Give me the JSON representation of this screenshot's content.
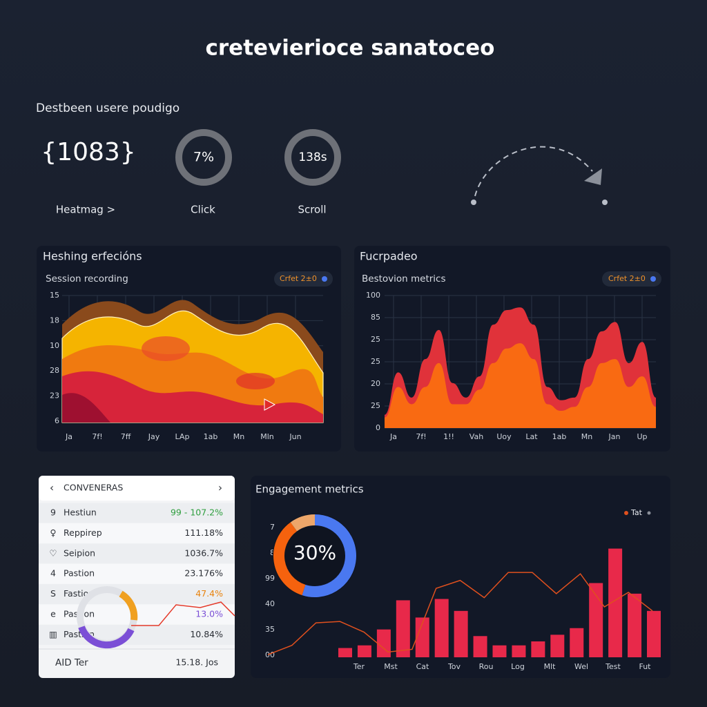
{
  "header": {
    "title": "cretevierioce sanatoceo"
  },
  "summary": {
    "heading": "Destbeen usere poudigo",
    "metrics": [
      {
        "value": "{1083}",
        "label": "Heatmag >"
      },
      {
        "value": "7%",
        "label": "Click"
      },
      {
        "value": "138s",
        "label": "Scroll"
      }
    ]
  },
  "heatmap_panel": {
    "title": "Heshing erfecións",
    "subtitle": "Session recording",
    "badge": "Crfet 2±0",
    "y_labels": [
      "15",
      "18",
      "10",
      "28",
      "23",
      "6"
    ],
    "x_labels": [
      "Ja",
      "7f!",
      "7ff",
      "Jay",
      "LAp",
      "1ab",
      "Mn",
      "Mln",
      "Jun"
    ]
  },
  "area_panel": {
    "title": "Fucrpadeo",
    "subtitle": "Bestovion metrics",
    "badge": "Crfet 2±0",
    "chart": {
      "type": "area",
      "ylim": [
        0,
        100
      ],
      "y_labels": [
        "100",
        "85",
        "25",
        "25",
        "20",
        "25",
        "0"
      ],
      "x_labels": [
        "Ja",
        "7f!",
        "1!!",
        "Vah",
        "Uoy",
        "Lat",
        "1ab",
        "Mn",
        "Jan",
        "Up"
      ],
      "series": [
        {
          "color": "#e0323a",
          "values": [
            10,
            42,
            23,
            52,
            74,
            34,
            23,
            39,
            78,
            89,
            91,
            78,
            31,
            21,
            23,
            52,
            73,
            80,
            49,
            65,
            23
          ]
        },
        {
          "color": "#f96a12",
          "values": [
            8,
            31,
            18,
            31,
            49,
            18,
            18,
            29,
            49,
            60,
            64,
            52,
            18,
            13,
            16,
            31,
            49,
            52,
            31,
            39,
            16
          ]
        }
      ]
    }
  },
  "table_card": {
    "title": "CONVENERAS",
    "rows": [
      {
        "icon": "9",
        "name": "Hestiun",
        "value": "99 - 107.2%",
        "color": "#2e9e3e"
      },
      {
        "icon": "♀",
        "name": "Reppirep",
        "value": "111.18%",
        "color": "#2b2f36"
      },
      {
        "icon": "♡",
        "name": "Seipion",
        "value": "1036.7%",
        "color": "#2b2f36"
      },
      {
        "icon": "4",
        "name": "Pastion",
        "value": "23.176%",
        "color": "#2b2f36"
      },
      {
        "icon": "S",
        "name": "Fastion",
        "value": "47.4%",
        "color": "#e8820c"
      },
      {
        "icon": "e",
        "name": "Pastion",
        "value": "13.0%",
        "color": "#7b4fd6"
      },
      {
        "icon": "▥",
        "name": "Pastion",
        "value": "10.84%",
        "color": "#2b2f36"
      }
    ],
    "footer": {
      "left": "AID Ter",
      "right": "15.18. Jos"
    }
  },
  "engagement_panel": {
    "title": "Engagement metrics",
    "legend": "Tat",
    "donut": {
      "label": "30%",
      "values": [
        55,
        35,
        10
      ],
      "colors": [
        "#4a78f0",
        "#f5620e",
        "#eda66a"
      ]
    },
    "chart": {
      "type": "bar",
      "ylim": [
        0,
        100
      ],
      "y_labels": [
        "7",
        "8",
        "99",
        "40",
        "35",
        "00"
      ],
      "x_labels": [
        "Ter",
        "Mst",
        "Cat",
        "Tov",
        "Rou",
        "Log",
        "Mlt",
        "Wel",
        "Test",
        "Fut"
      ],
      "bar_color": "#e8294a",
      "line_color": "#e0501e",
      "values": [
        7,
        9,
        21,
        43,
        30,
        44,
        35,
        16,
        9,
        9,
        12,
        17,
        22,
        56,
        82,
        48,
        35
      ],
      "line_values": [
        2,
        9,
        26,
        27,
        19,
        4,
        6,
        52,
        58,
        45,
        64,
        64,
        48,
        63,
        38,
        49,
        35
      ]
    }
  }
}
